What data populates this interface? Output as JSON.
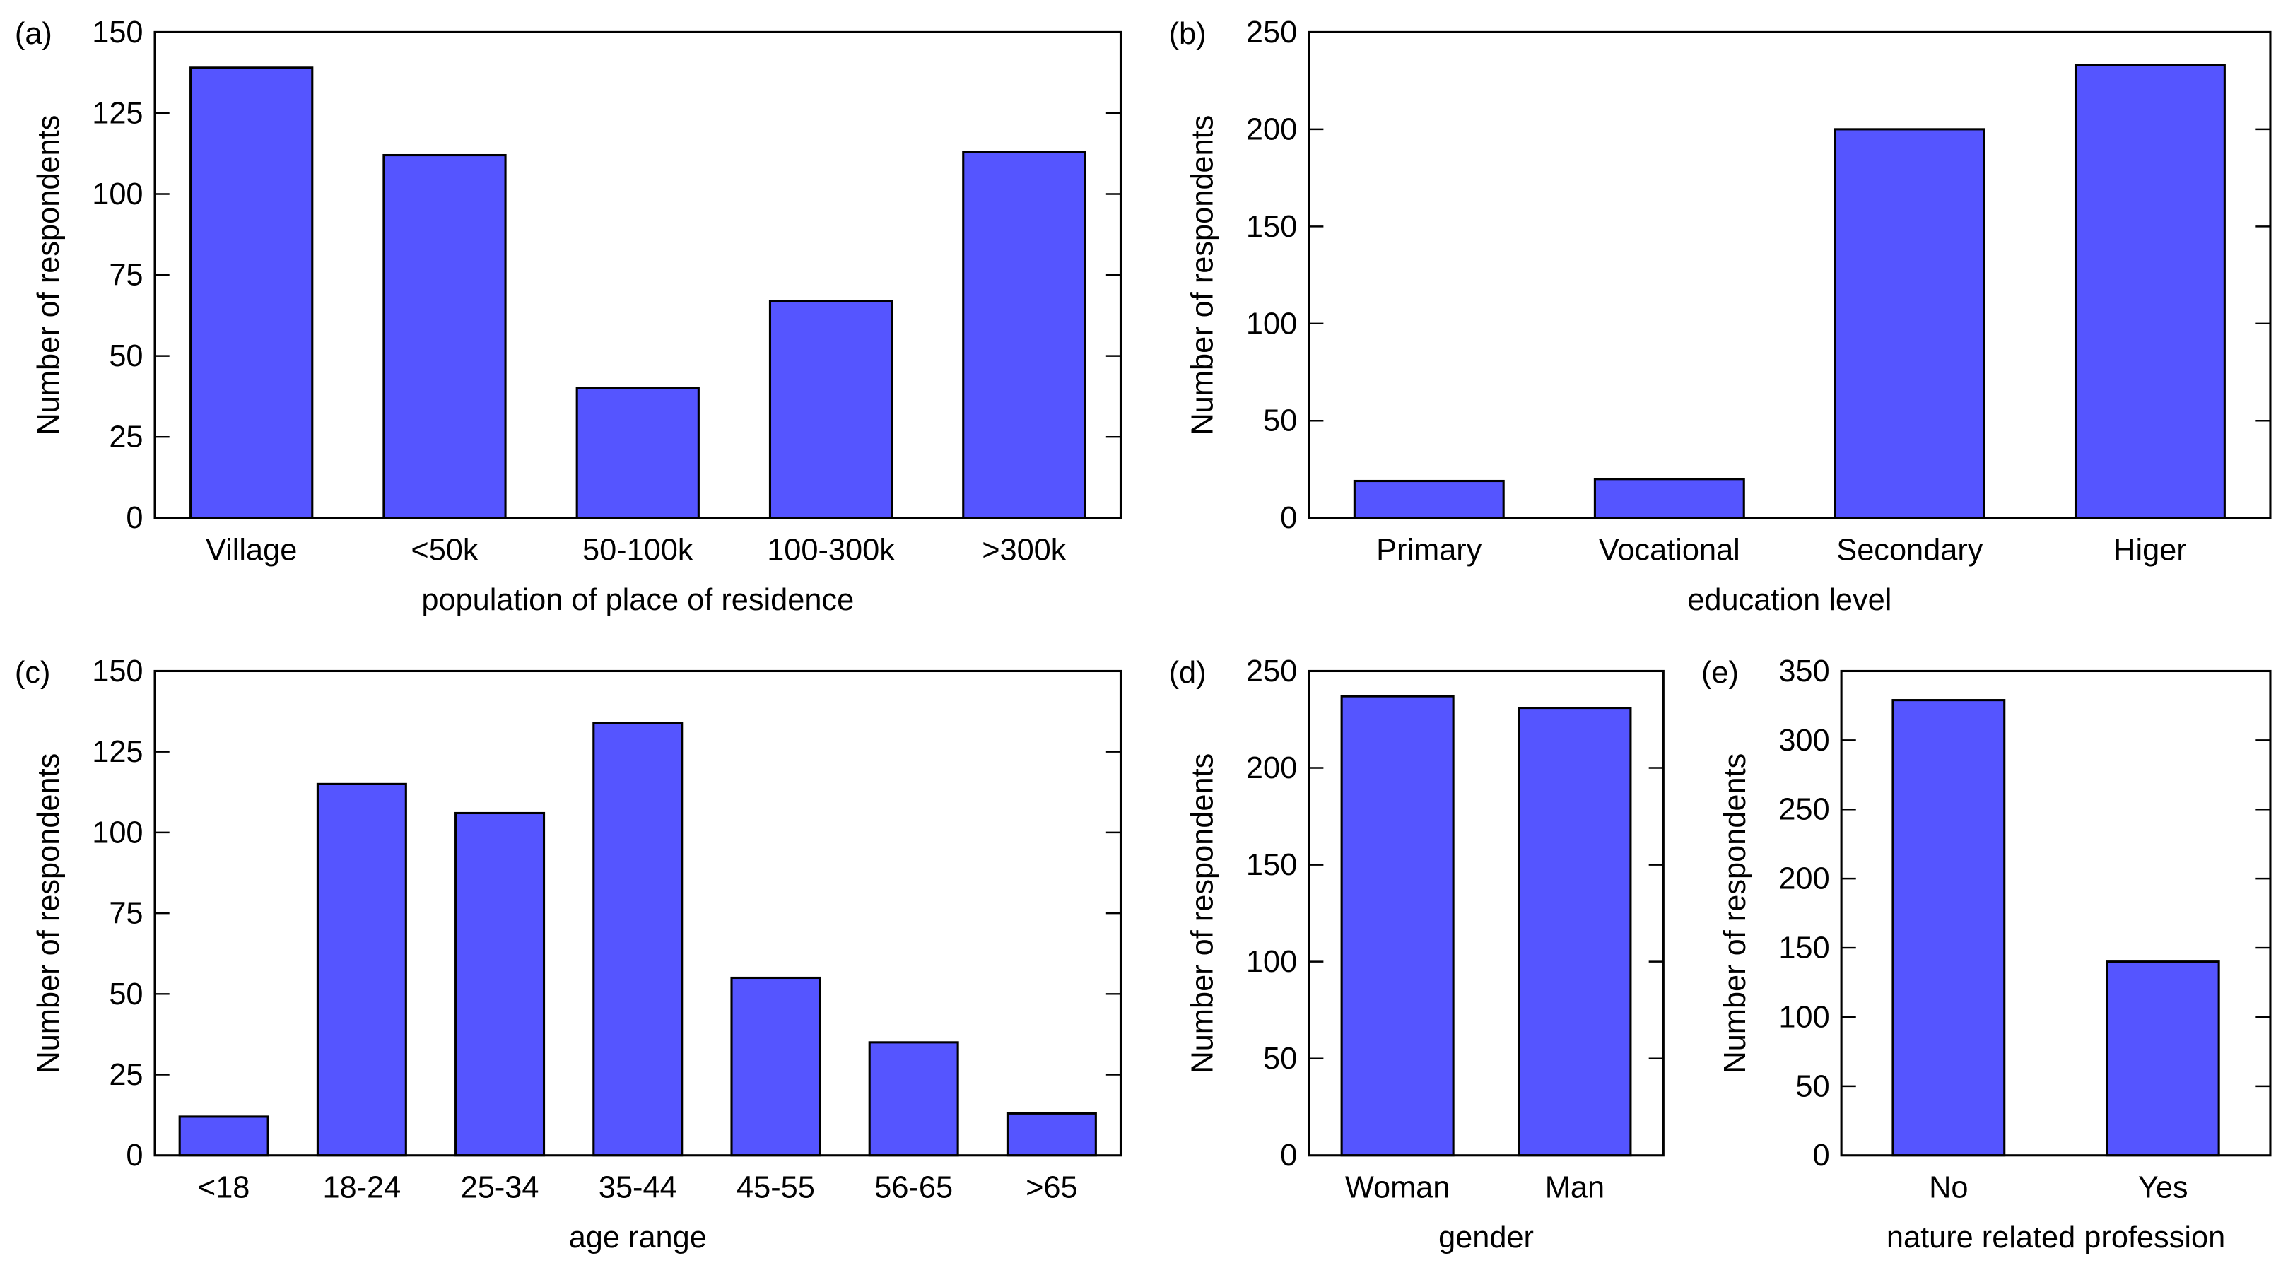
{
  "chart_data": [
    {
      "type": "bar",
      "panel_label": "(a)",
      "xlabel": "population of place of residence",
      "ylabel": "Number of respondents",
      "categories": [
        "Village",
        "<50k",
        "50-100k",
        "100-300k",
        ">300k"
      ],
      "values": [
        139,
        112,
        40,
        67,
        113
      ],
      "color": "#5555ff",
      "ylim": [
        0,
        150
      ],
      "yticks": [
        0,
        25,
        50,
        75,
        100,
        125,
        150
      ]
    },
    {
      "type": "bar",
      "panel_label": "(b)",
      "xlabel": "education level",
      "ylabel": "Number of respondents",
      "categories": [
        "Primary",
        "Vocational",
        "Secondary",
        "Higer"
      ],
      "values": [
        19,
        20,
        200,
        233
      ],
      "color": "#5555ff",
      "ylim": [
        0,
        250
      ],
      "yticks": [
        0,
        50,
        100,
        150,
        200,
        250
      ]
    },
    {
      "type": "bar",
      "panel_label": "(c)",
      "xlabel": "age range",
      "ylabel": "Number of respondents",
      "categories": [
        "<18",
        "18-24",
        "25-34",
        "35-44",
        "45-55",
        "56-65",
        ">65"
      ],
      "values": [
        12,
        115,
        106,
        134,
        55,
        35,
        13
      ],
      "color": "#5555ff",
      "ylim": [
        0,
        150
      ],
      "yticks": [
        0,
        25,
        50,
        75,
        100,
        125,
        150
      ]
    },
    {
      "type": "bar",
      "panel_label": "(d)",
      "xlabel": "gender",
      "ylabel": "Number of respondents",
      "categories": [
        "Woman",
        "Man"
      ],
      "values": [
        237,
        231
      ],
      "color": "#5555ff",
      "ylim": [
        0,
        250
      ],
      "yticks": [
        0,
        50,
        100,
        150,
        200,
        250
      ]
    },
    {
      "type": "bar",
      "panel_label": "(e)",
      "xlabel": "nature related profession",
      "ylabel": "Number of respondents",
      "categories": [
        "No",
        "Yes"
      ],
      "values": [
        329,
        140
      ],
      "color": "#5555ff",
      "ylim": [
        0,
        350
      ],
      "yticks": [
        0,
        50,
        100,
        150,
        200,
        250,
        300,
        350
      ]
    }
  ]
}
